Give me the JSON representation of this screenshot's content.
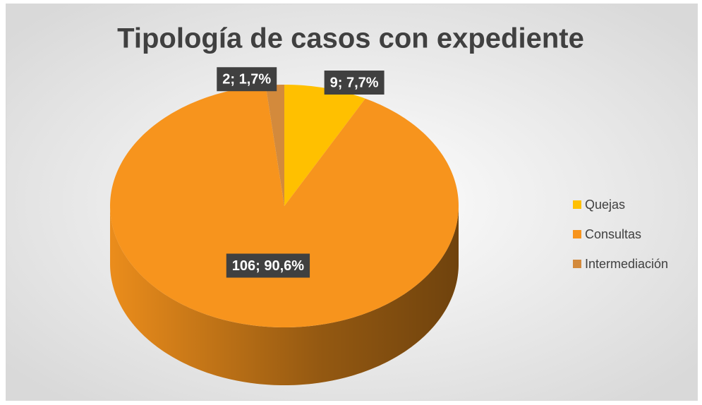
{
  "chart_data": {
    "type": "pie",
    "title": "Tipología de casos con expediente",
    "categories": [
      "Quejas",
      "Consultas",
      "Intermediación"
    ],
    "values": [
      9,
      106,
      2
    ],
    "value_labels": [
      "9; 7,7%",
      "106; 90,6%",
      "2; 1,7%"
    ],
    "colors": [
      "#ffc000",
      "#f7941d",
      "#d38a3c"
    ],
    "legend": "right"
  }
}
